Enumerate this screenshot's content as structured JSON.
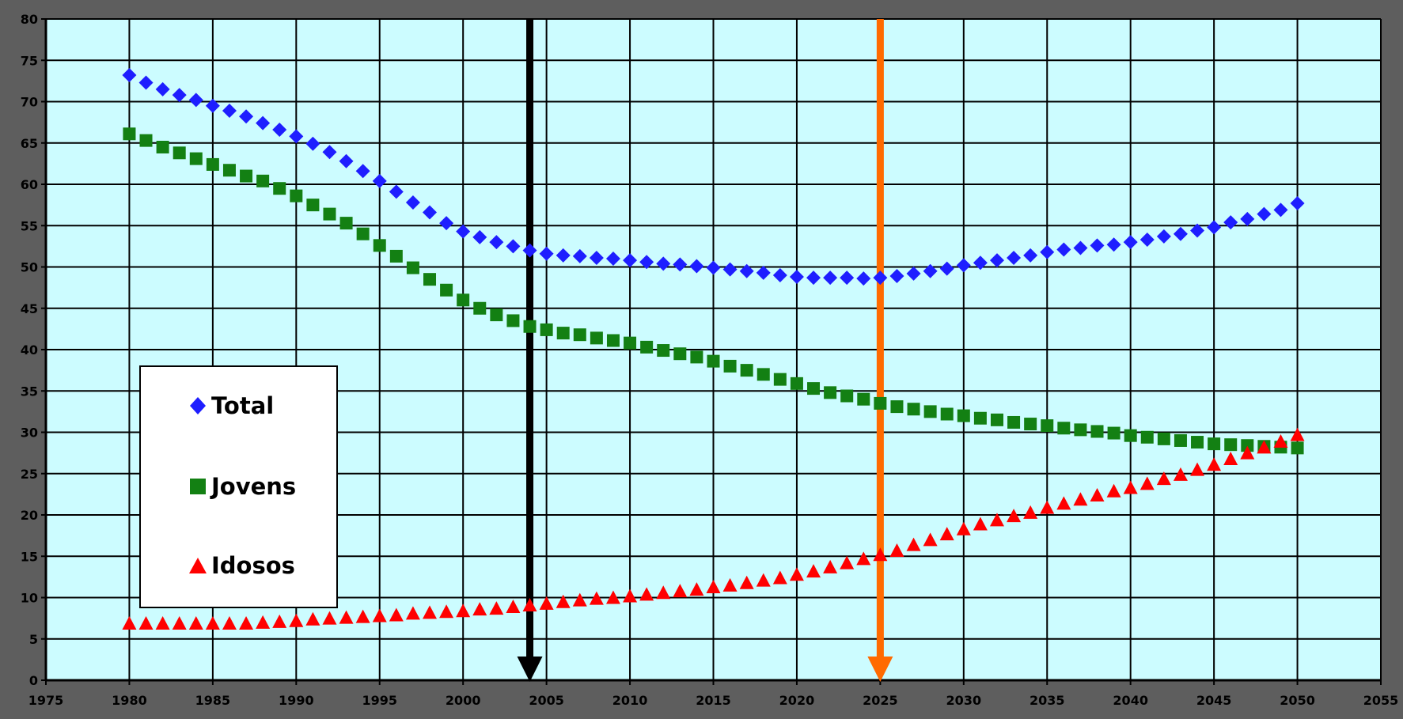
{
  "chart_data": {
    "type": "scatter",
    "title": "",
    "xlabel": "",
    "ylabel": "",
    "xlim": [
      1975,
      2055
    ],
    "ylim": [
      0,
      80
    ],
    "x_ticks": [
      "1975",
      "1980",
      "1985",
      "1990",
      "1995",
      "2000",
      "2005",
      "2010",
      "2015",
      "2020",
      "2025",
      "2030",
      "2035",
      "2040",
      "2045",
      "2050",
      "2055"
    ],
    "y_ticks": [
      "0",
      "5",
      "10",
      "15",
      "20",
      "25",
      "30",
      "35",
      "40",
      "45",
      "50",
      "55",
      "60",
      "65",
      "70",
      "75",
      "80"
    ],
    "grid": true,
    "plot_background": "#ccfcff",
    "legend": {
      "position": "left-middle",
      "entries": [
        {
          "label": "Total",
          "marker": "diamond",
          "color": "#1e1eff"
        },
        {
          "label": "Jovens",
          "marker": "square",
          "color": "#138013"
        },
        {
          "label": "Idosos",
          "marker": "triangle",
          "color": "#ff0000"
        }
      ]
    },
    "x": [
      1980,
      1981,
      1982,
      1983,
      1984,
      1985,
      1986,
      1987,
      1988,
      1989,
      1990,
      1991,
      1992,
      1993,
      1994,
      1995,
      1996,
      1997,
      1998,
      1999,
      2000,
      2001,
      2002,
      2003,
      2004,
      2005,
      2006,
      2007,
      2008,
      2009,
      2010,
      2011,
      2012,
      2013,
      2014,
      2015,
      2016,
      2017,
      2018,
      2019,
      2020,
      2021,
      2022,
      2023,
      2024,
      2025,
      2026,
      2027,
      2028,
      2029,
      2030,
      2031,
      2032,
      2033,
      2034,
      2035,
      2036,
      2037,
      2038,
      2039,
      2040,
      2041,
      2042,
      2043,
      2044,
      2045,
      2046,
      2047,
      2048,
      2049,
      2050
    ],
    "series": [
      {
        "name": "Total",
        "color": "#1e1eff",
        "marker": "diamond",
        "values": [
          73.2,
          72.3,
          71.5,
          70.8,
          70.2,
          69.5,
          68.9,
          68.2,
          67.4,
          66.6,
          65.8,
          64.9,
          63.9,
          62.8,
          61.6,
          60.4,
          59.1,
          57.8,
          56.6,
          55.3,
          54.3,
          53.6,
          53.0,
          52.5,
          52.0,
          51.6,
          51.4,
          51.3,
          51.1,
          51.0,
          50.8,
          50.6,
          50.4,
          50.3,
          50.1,
          49.9,
          49.7,
          49.5,
          49.3,
          49.0,
          48.8,
          48.7,
          48.7,
          48.7,
          48.6,
          48.7,
          48.9,
          49.2,
          49.5,
          49.8,
          50.2,
          50.5,
          50.8,
          51.1,
          51.4,
          51.8,
          52.1,
          52.3,
          52.6,
          52.7,
          53.0,
          53.3,
          53.7,
          54.0,
          54.4,
          54.8,
          55.4,
          55.8,
          56.4,
          56.9,
          57.7
        ]
      },
      {
        "name": "Jovens",
        "color": "#138013",
        "marker": "square",
        "values": [
          66.1,
          65.3,
          64.5,
          63.8,
          63.1,
          62.4,
          61.7,
          61.0,
          60.4,
          59.5,
          58.6,
          57.5,
          56.4,
          55.3,
          54.0,
          52.6,
          51.3,
          49.9,
          48.5,
          47.2,
          46.0,
          45.0,
          44.2,
          43.5,
          42.8,
          42.4,
          42.0,
          41.8,
          41.4,
          41.1,
          40.8,
          40.3,
          39.9,
          39.5,
          39.1,
          38.6,
          38.0,
          37.5,
          37.0,
          36.4,
          35.9,
          35.3,
          34.8,
          34.4,
          34.0,
          33.5,
          33.1,
          32.8,
          32.5,
          32.2,
          32.0,
          31.7,
          31.5,
          31.2,
          31.0,
          30.8,
          30.5,
          30.3,
          30.1,
          29.9,
          29.6,
          29.4,
          29.2,
          29.0,
          28.8,
          28.6,
          28.5,
          28.4,
          28.3,
          28.2,
          28.1
        ]
      },
      {
        "name": "Idosos",
        "color": "#ff0000",
        "marker": "triangle",
        "values": [
          6.8,
          6.8,
          6.8,
          6.8,
          6.8,
          6.8,
          6.8,
          6.8,
          6.9,
          7.0,
          7.1,
          7.3,
          7.4,
          7.5,
          7.6,
          7.7,
          7.8,
          8.0,
          8.1,
          8.2,
          8.3,
          8.5,
          8.6,
          8.8,
          9.0,
          9.2,
          9.4,
          9.6,
          9.8,
          9.9,
          10.1,
          10.3,
          10.5,
          10.7,
          10.9,
          11.2,
          11.4,
          11.7,
          12.0,
          12.3,
          12.7,
          13.1,
          13.6,
          14.1,
          14.6,
          15.1,
          15.6,
          16.3,
          16.9,
          17.6,
          18.2,
          18.8,
          19.3,
          19.8,
          20.2,
          20.8,
          21.3,
          21.8,
          22.3,
          22.8,
          23.2,
          23.7,
          24.3,
          24.8,
          25.4,
          26.0,
          26.7,
          27.4,
          28.1,
          28.8,
          29.6
        ]
      }
    ],
    "annotations": [
      {
        "type": "vertical-arrow",
        "x": 2004,
        "y_from": 80,
        "y_to": 0,
        "color": "#000000"
      },
      {
        "type": "vertical-arrow",
        "x": 2025,
        "y_from": 80,
        "y_to": 0,
        "color": "#ff6a00"
      }
    ]
  }
}
